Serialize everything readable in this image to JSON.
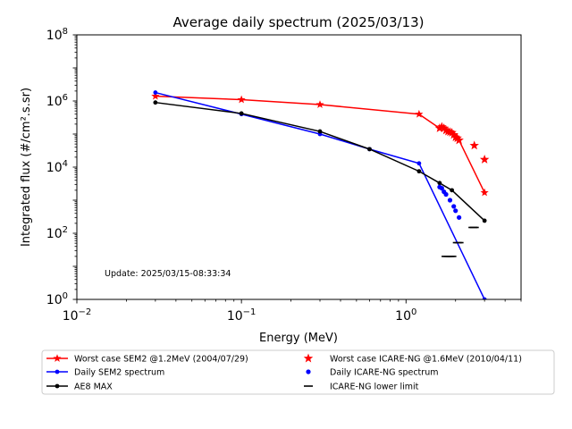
{
  "chart_data": {
    "type": "line",
    "title": "Average daily spectrum (2025/03/13)",
    "xlabel": "Energy (MeV)",
    "ylabel": "Integrated flux (#/cm².s.sr)",
    "x_scale": "log",
    "y_scale": "log",
    "xlim": [
      0.01,
      5
    ],
    "ylim": [
      1,
      100000000
    ],
    "x_ticks": [
      {
        "value": 0.01,
        "base": "10",
        "exp": "−2"
      },
      {
        "value": 0.1,
        "base": "10",
        "exp": "−1"
      },
      {
        "value": 1,
        "base": "10",
        "exp": "0"
      }
    ],
    "y_ticks": [
      {
        "value": 1,
        "base": "10",
        "exp": "0"
      },
      {
        "value": 100,
        "base": "10",
        "exp": "2"
      },
      {
        "value": 10000,
        "base": "10",
        "exp": "4"
      },
      {
        "value": 1000000,
        "base": "10",
        "exp": "6"
      },
      {
        "value": 100000000,
        "base": "10",
        "exp": "8"
      }
    ],
    "annotation": "Update: 2025/03/15-08:33:34",
    "grid": false,
    "legend_position": "bottom",
    "series": [
      {
        "name": "Worst case SEM2 @1.2MeV (2004/07/29)",
        "kind": "line",
        "marker": "star",
        "color": "#ff0000",
        "x": [
          0.03,
          0.1,
          0.3,
          1.2,
          1.6,
          1.65,
          1.7,
          1.75,
          1.8,
          1.85,
          1.9,
          1.95,
          2.0,
          2.1,
          3.0
        ],
        "y": [
          1400000,
          1100000,
          780000,
          400000,
          150000,
          165000,
          150000,
          130000,
          120000,
          115000,
          110000,
          95000,
          80000,
          65000,
          1700
        ]
      },
      {
        "name": "Daily SEM2 spectrum",
        "kind": "line",
        "marker": "dot",
        "color": "#0000ff",
        "x": [
          0.03,
          0.1,
          0.3,
          0.6,
          1.2,
          3.0
        ],
        "y": [
          1800000,
          400000,
          100000,
          35000,
          13000,
          1
        ]
      },
      {
        "name": "AE8 MAX",
        "kind": "line",
        "marker": "dot",
        "color": "#000000",
        "x": [
          0.03,
          0.1,
          0.3,
          0.6,
          1.2,
          1.6,
          1.9,
          3.0
        ],
        "y": [
          900000,
          420000,
          120000,
          35000,
          7500,
          3300,
          2000,
          240
        ]
      },
      {
        "name": "Worst case ICARE-NG @1.6MeV (2010/04/11)",
        "kind": "scatter",
        "marker": "star",
        "color": "#ff0000",
        "x": [
          1.6,
          1.65,
          1.7,
          1.75,
          1.8,
          1.85,
          1.9,
          1.95,
          2.0,
          2.05,
          2.1,
          2.6,
          3.0
        ],
        "y": [
          150000,
          165000,
          150000,
          130000,
          120000,
          115000,
          110000,
          95000,
          80000,
          75000,
          65000,
          45000,
          17000
        ]
      },
      {
        "name": "Daily ICARE-NG spectrum",
        "kind": "scatter",
        "marker": "dot",
        "color": "#0000ff",
        "x": [
          1.6,
          1.65,
          1.7,
          1.75,
          1.85,
          1.95,
          2.0,
          2.1
        ],
        "y": [
          2500,
          2300,
          1800,
          1500,
          1000,
          650,
          480,
          300
        ]
      },
      {
        "name": "ICARE-NG lower limit",
        "kind": "scatter",
        "marker": "hline",
        "color": "#000000",
        "x": [
          1.75,
          1.8,
          1.85,
          1.9,
          2.05,
          2.1,
          2.55,
          2.6
        ],
        "y": [
          20,
          20,
          20,
          20,
          52,
          52,
          150,
          150
        ]
      }
    ]
  }
}
